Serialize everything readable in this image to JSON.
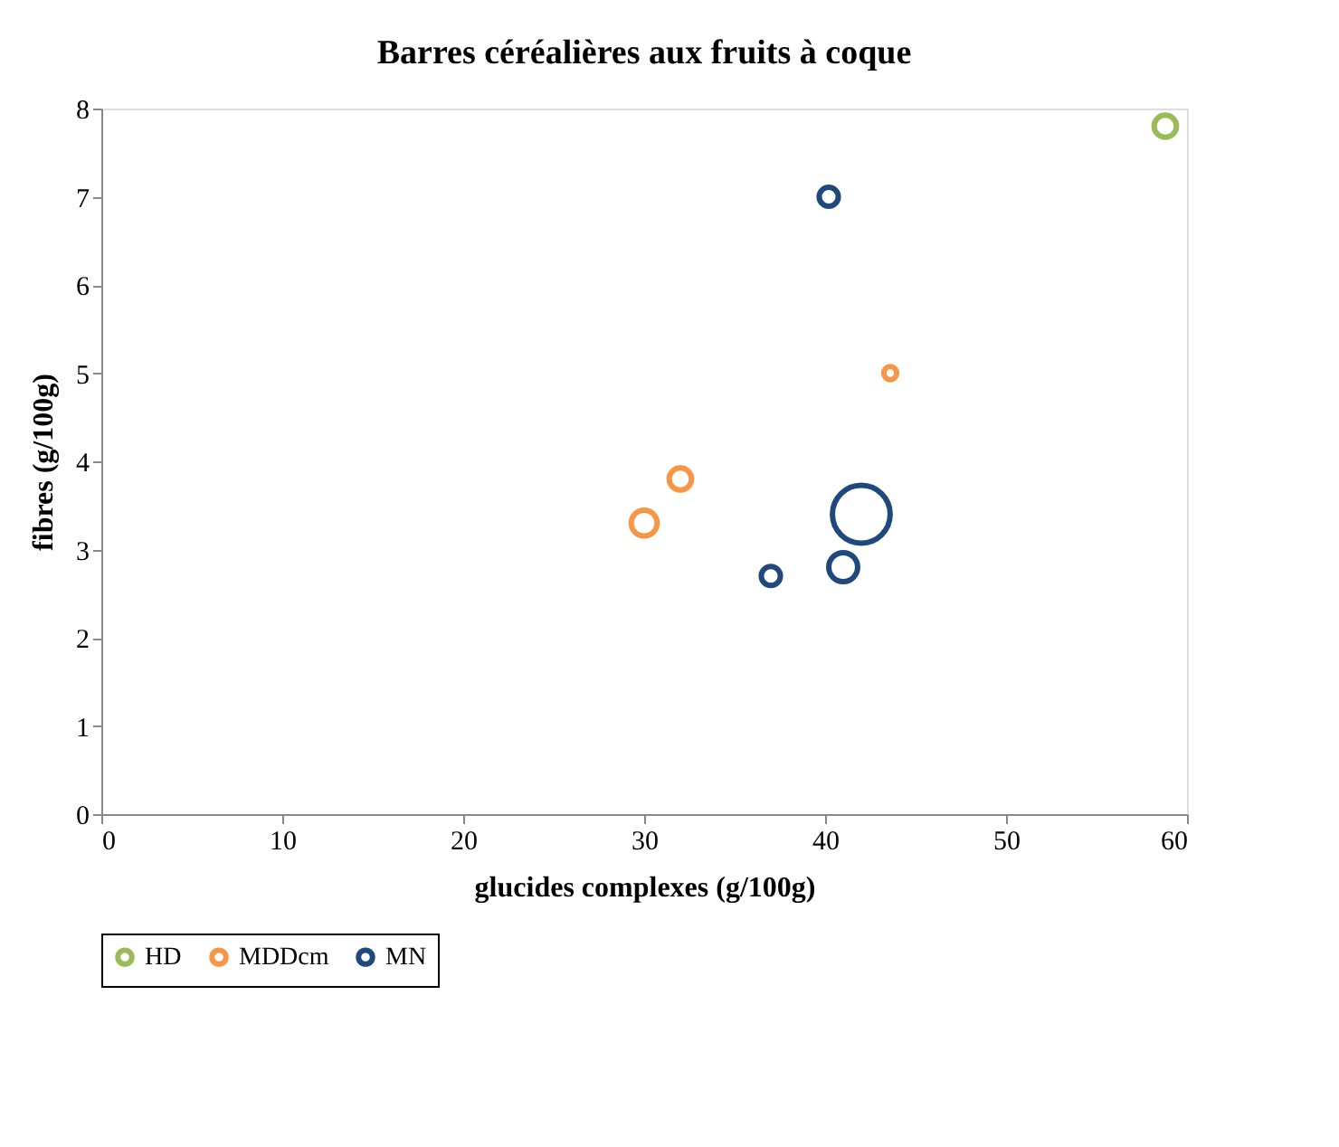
{
  "chart_data": {
    "type": "bubble",
    "title": "Barres céréalières  aux fruits à coque",
    "xlabel": "glucides complexes (g/100g)",
    "ylabel": "fibres (g/100g)",
    "xlim": [
      0,
      60
    ],
    "xticks": [
      0,
      10,
      20,
      30,
      40,
      50,
      60
    ],
    "ylim": [
      0,
      8
    ],
    "yticks": [
      0,
      1,
      2,
      3,
      4,
      5,
      6,
      7,
      8
    ],
    "grid": false,
    "legend": "bottom",
    "series": [
      {
        "name": "HD",
        "color": "#9bbb59",
        "x": [
          58.8
        ],
        "values": [
          7.8
        ],
        "sizes": [
          0.15
        ]
      },
      {
        "name": "MDDcm",
        "color": "#f79646",
        "x": [
          30,
          32,
          43.6
        ],
        "values": [
          3.3,
          3.8,
          5.0
        ],
        "sizes": [
          0.2,
          0.15,
          0.05
        ]
      },
      {
        "name": "MN",
        "color": "#1f497d",
        "x": [
          40.2,
          37,
          41,
          42
        ],
        "values": [
          7.0,
          2.7,
          2.8,
          3.4
        ],
        "sizes": [
          0.11,
          0.11,
          0.25,
          1
        ]
      }
    ]
  }
}
